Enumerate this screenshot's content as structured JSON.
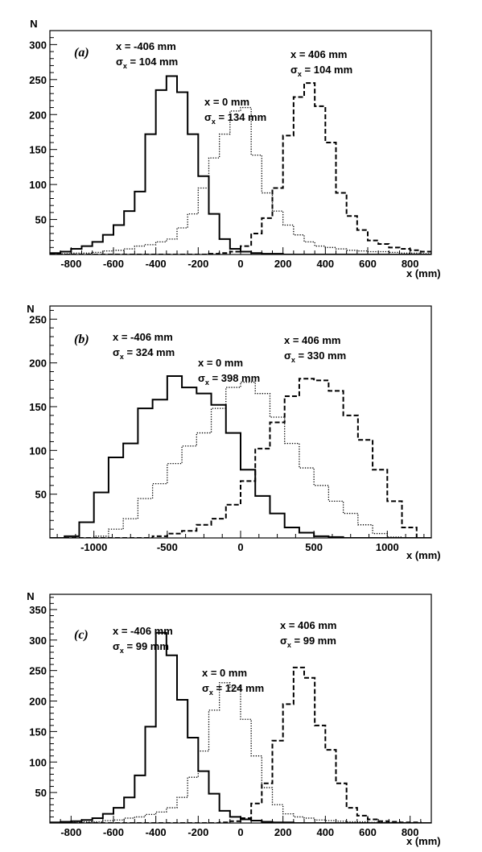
{
  "chart_data": [
    {
      "type": "histogram",
      "panel_label": "(a)",
      "xlabel": "x (mm)",
      "ylabel": "N",
      "xlim": [
        -900,
        900
      ],
      "ylim": [
        0,
        320
      ],
      "xticks": [
        -800,
        -600,
        -400,
        -200,
        0,
        200,
        400,
        600,
        800
      ],
      "yticks": [
        50,
        100,
        150,
        200,
        250,
        300
      ],
      "series": [
        {
          "style": "solid",
          "annotation": {
            "position_text": "x = -406 mm",
            "sigma_sym": "σ",
            "sigma_sub": "x",
            "sigma_val": " = 104 mm"
          },
          "bin_edges": [
            -900,
            -850,
            -800,
            -750,
            -700,
            -650,
            -600,
            -550,
            -500,
            -450,
            -400,
            -350,
            -300,
            -250,
            -200,
            -150,
            -100,
            -50,
            0,
            50,
            100,
            150,
            200,
            250,
            300,
            350,
            400,
            450,
            500,
            550,
            600,
            650,
            700,
            750,
            800,
            850,
            900
          ],
          "counts": [
            2,
            4,
            8,
            12,
            18,
            28,
            42,
            62,
            90,
            172,
            235,
            255,
            232,
            172,
            112,
            58,
            22,
            8,
            4,
            2,
            1,
            1,
            0,
            0,
            0,
            0,
            0,
            0,
            0,
            0,
            0,
            0,
            0,
            0,
            0,
            0
          ]
        },
        {
          "style": "dotted",
          "annotation": {
            "position_text": "x = 0 mm",
            "sigma_sym": "σ",
            "sigma_sub": "x",
            "sigma_val": " = 134 mm"
          },
          "bin_edges": [
            -900,
            -850,
            -800,
            -750,
            -700,
            -650,
            -600,
            -550,
            -500,
            -450,
            -400,
            -350,
            -300,
            -250,
            -200,
            -150,
            -100,
            -50,
            0,
            50,
            100,
            150,
            200,
            250,
            300,
            350,
            400,
            450,
            500,
            550,
            600,
            650,
            700,
            750,
            800,
            850,
            900
          ],
          "counts": [
            1,
            1,
            2,
            2,
            3,
            5,
            6,
            8,
            12,
            14,
            18,
            22,
            38,
            58,
            95,
            138,
            172,
            205,
            210,
            142,
            88,
            62,
            42,
            28,
            18,
            12,
            10,
            8,
            6,
            5,
            4,
            4,
            3,
            2,
            2,
            1
          ]
        },
        {
          "style": "dashed",
          "annotation": {
            "position_text": "x = 406 mm",
            "sigma_sym": "σ",
            "sigma_sub": "x",
            "sigma_val": " = 104 mm"
          },
          "bin_edges": [
            -900,
            -850,
            -800,
            -750,
            -700,
            -650,
            -600,
            -550,
            -500,
            -450,
            -400,
            -350,
            -300,
            -250,
            -200,
            -150,
            -100,
            -50,
            0,
            50,
            100,
            150,
            200,
            250,
            300,
            350,
            400,
            450,
            500,
            550,
            600,
            650,
            700,
            750,
            800,
            850,
            900
          ],
          "counts": [
            0,
            0,
            0,
            0,
            0,
            0,
            0,
            0,
            0,
            0,
            0,
            0,
            0,
            0,
            0,
            1,
            2,
            4,
            12,
            30,
            52,
            95,
            170,
            225,
            245,
            212,
            160,
            88,
            55,
            35,
            20,
            15,
            10,
            8,
            6,
            4
          ]
        }
      ]
    },
    {
      "type": "histogram",
      "panel_label": "(b)",
      "xlabel": "x (mm)",
      "ylabel": "N",
      "xlim": [
        -1300,
        1300
      ],
      "ylim": [
        0,
        265
      ],
      "xticks": [
        -1000,
        -500,
        0,
        500,
        1000
      ],
      "yticks": [
        50,
        100,
        150,
        200,
        250
      ],
      "series": [
        {
          "style": "solid",
          "annotation": {
            "position_text": "x = -406 mm",
            "sigma_sym": "σ",
            "sigma_sub": "x",
            "sigma_val": " = 324 mm"
          },
          "bin_edges": [
            -1300,
            -1200,
            -1100,
            -1000,
            -900,
            -800,
            -700,
            -600,
            -500,
            -400,
            -300,
            -200,
            -100,
            0,
            100,
            200,
            300,
            400,
            500,
            600,
            700,
            800,
            900,
            1000,
            1100,
            1200,
            1300
          ],
          "counts": [
            0,
            2,
            18,
            52,
            92,
            108,
            148,
            158,
            185,
            172,
            165,
            152,
            120,
            78,
            48,
            28,
            12,
            6,
            2,
            1,
            0,
            0,
            0,
            0,
            0,
            0
          ]
        },
        {
          "style": "dotted",
          "annotation": {
            "position_text": "x = 0 mm",
            "sigma_sym": "σ",
            "sigma_sub": "x",
            "sigma_val": " = 398 mm"
          },
          "bin_edges": [
            -1300,
            -1200,
            -1100,
            -1000,
            -900,
            -800,
            -700,
            -600,
            -500,
            -400,
            -300,
            -200,
            -100,
            0,
            100,
            200,
            300,
            400,
            500,
            600,
            700,
            800,
            900,
            1000,
            1100,
            1200,
            1300
          ],
          "counts": [
            0,
            0,
            0,
            2,
            10,
            22,
            45,
            62,
            85,
            105,
            120,
            148,
            172,
            178,
            165,
            138,
            108,
            80,
            60,
            42,
            28,
            15,
            5,
            1,
            0,
            0
          ]
        },
        {
          "style": "dashed",
          "annotation": {
            "position_text": "x = 406 mm",
            "sigma_sym": "σ",
            "sigma_sub": "x",
            "sigma_val": " = 330 mm"
          },
          "bin_edges": [
            -1300,
            -1200,
            -1100,
            -1000,
            -900,
            -800,
            -700,
            -600,
            -500,
            -400,
            -300,
            -200,
            -100,
            0,
            100,
            200,
            300,
            400,
            500,
            600,
            700,
            800,
            900,
            1000,
            1100,
            1200,
            1300
          ],
          "counts": [
            0,
            0,
            0,
            0,
            0,
            0,
            0,
            2,
            5,
            8,
            15,
            22,
            38,
            65,
            102,
            132,
            162,
            182,
            180,
            168,
            140,
            112,
            78,
            42,
            12,
            0
          ]
        }
      ]
    },
    {
      "type": "histogram",
      "panel_label": "(c)",
      "xlabel": "x (mm)",
      "ylabel": "N",
      "xlim": [
        -900,
        900
      ],
      "ylim": [
        0,
        375
      ],
      "xticks": [
        -800,
        -600,
        -400,
        -200,
        0,
        200,
        400,
        600,
        800
      ],
      "yticks": [
        50,
        100,
        150,
        200,
        250,
        300,
        350
      ],
      "series": [
        {
          "style": "solid",
          "annotation": {
            "position_text": "x = -406 mm",
            "sigma_sym": "σ",
            "sigma_sub": "x",
            "sigma_val": " = 99 mm"
          },
          "bin_edges": [
            -900,
            -850,
            -800,
            -750,
            -700,
            -650,
            -600,
            -550,
            -500,
            -450,
            -400,
            -350,
            -300,
            -250,
            -200,
            -150,
            -100,
            -50,
            0,
            50,
            100,
            150,
            200,
            250,
            300,
            350,
            400,
            450,
            500,
            550,
            600,
            650,
            700,
            750,
            800,
            850,
            900
          ],
          "counts": [
            1,
            2,
            3,
            5,
            8,
            15,
            25,
            42,
            78,
            158,
            312,
            275,
            202,
            140,
            85,
            48,
            20,
            10,
            6,
            4,
            2,
            1,
            1,
            0,
            0,
            0,
            0,
            0,
            0,
            0,
            0,
            0,
            0,
            0,
            0,
            0
          ]
        },
        {
          "style": "dotted",
          "annotation": {
            "position_text": "x = 0 mm",
            "sigma_sym": "σ",
            "sigma_sub": "x",
            "sigma_val": " = 124 mm"
          },
          "bin_edges": [
            -900,
            -850,
            -800,
            -750,
            -700,
            -650,
            -600,
            -550,
            -500,
            -450,
            -400,
            -350,
            -300,
            -250,
            -200,
            -150,
            -100,
            -50,
            0,
            50,
            100,
            150,
            200,
            250,
            300,
            350,
            400,
            450,
            500,
            550,
            600,
            650,
            700,
            750,
            800,
            850,
            900
          ],
          "counts": [
            0,
            0,
            1,
            2,
            2,
            4,
            5,
            8,
            10,
            14,
            18,
            25,
            42,
            75,
            118,
            185,
            230,
            222,
            170,
            110,
            58,
            30,
            15,
            10,
            8,
            5,
            4,
            3,
            2,
            2,
            1,
            1,
            1,
            0,
            0,
            0
          ]
        },
        {
          "style": "dashed",
          "annotation": {
            "position_text": "x = 406 mm",
            "sigma_sym": "σ",
            "sigma_sub": "x",
            "sigma_val": " = 99 mm"
          },
          "bin_edges": [
            -900,
            -850,
            -800,
            -750,
            -700,
            -650,
            -600,
            -550,
            -500,
            -450,
            -400,
            -350,
            -300,
            -250,
            -200,
            -150,
            -100,
            -50,
            0,
            50,
            100,
            150,
            200,
            250,
            300,
            350,
            400,
            450,
            500,
            550,
            600,
            650,
            700,
            750,
            800,
            850,
            900
          ],
          "counts": [
            0,
            0,
            0,
            0,
            0,
            0,
            0,
            0,
            0,
            0,
            0,
            0,
            0,
            0,
            0,
            0,
            1,
            3,
            8,
            32,
            65,
            135,
            195,
            255,
            238,
            160,
            120,
            65,
            25,
            12,
            6,
            3,
            2,
            1,
            1,
            0
          ]
        }
      ]
    }
  ]
}
